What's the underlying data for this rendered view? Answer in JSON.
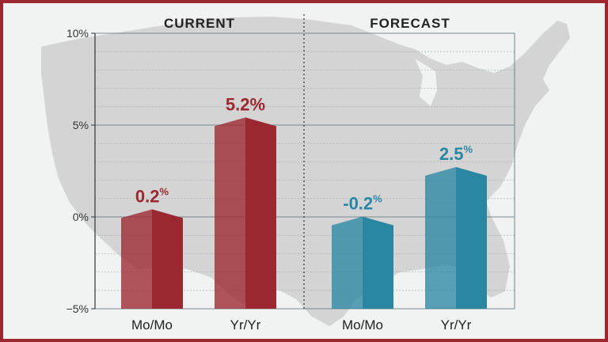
{
  "chart_data": {
    "type": "bar",
    "panels": [
      {
        "title": "CURRENT",
        "categories": [
          "Mo/Mo",
          "Yr/Yr"
        ],
        "values": [
          0.2,
          5.2
        ],
        "value_labels": [
          "0.2",
          "5.2%"
        ],
        "value_superscripts": [
          "%",
          ""
        ],
        "color": "#9b2730"
      },
      {
        "title": "FORECAST",
        "categories": [
          "Mo/Mo",
          "Yr/Yr"
        ],
        "values": [
          -0.2,
          2.5
        ],
        "value_labels": [
          "-0.2",
          "2.5"
        ],
        "value_superscripts": [
          "%",
          "%"
        ],
        "color": "#2a87a3"
      }
    ],
    "ylim": [
      -5,
      10
    ],
    "yticks": [
      -5,
      0,
      5,
      10
    ],
    "ytick_labels": [
      "−5%",
      "0%",
      "5%",
      "10%"
    ],
    "grid": true,
    "background": "us-map-silhouette"
  },
  "colors": {
    "frame": "#9b2730",
    "current": "#9b2730",
    "forecast": "#2a87a3",
    "map": "#d4d4d4"
  }
}
